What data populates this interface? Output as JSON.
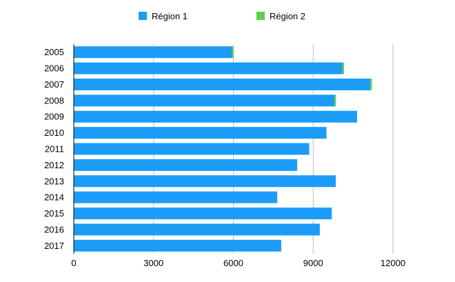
{
  "chart_data": {
    "type": "bar",
    "orientation": "horizontal",
    "stacked": true,
    "title": "",
    "xlabel": "",
    "ylabel": "",
    "categories": [
      "2005",
      "2006",
      "2007",
      "2008",
      "2009",
      "2010",
      "2011",
      "2012",
      "2013",
      "2014",
      "2015",
      "2016",
      "2017"
    ],
    "series": [
      {
        "name": "Région 1",
        "color": "#1c9cf6",
        "values": [
          5950,
          10100,
          11150,
          9800,
          10650,
          9500,
          8850,
          8400,
          9850,
          7650,
          9700,
          9250,
          7800
        ]
      },
      {
        "name": "Région 2",
        "color": "#5fd14a",
        "values": [
          60,
          60,
          60,
          60,
          0,
          0,
          0,
          0,
          0,
          0,
          0,
          0,
          0
        ]
      }
    ],
    "xlim": [
      0,
      12000
    ],
    "xticks": [
      "0",
      "3000",
      "6000",
      "9000",
      "12000"
    ],
    "grid": "vertical",
    "legend": "top-center"
  }
}
